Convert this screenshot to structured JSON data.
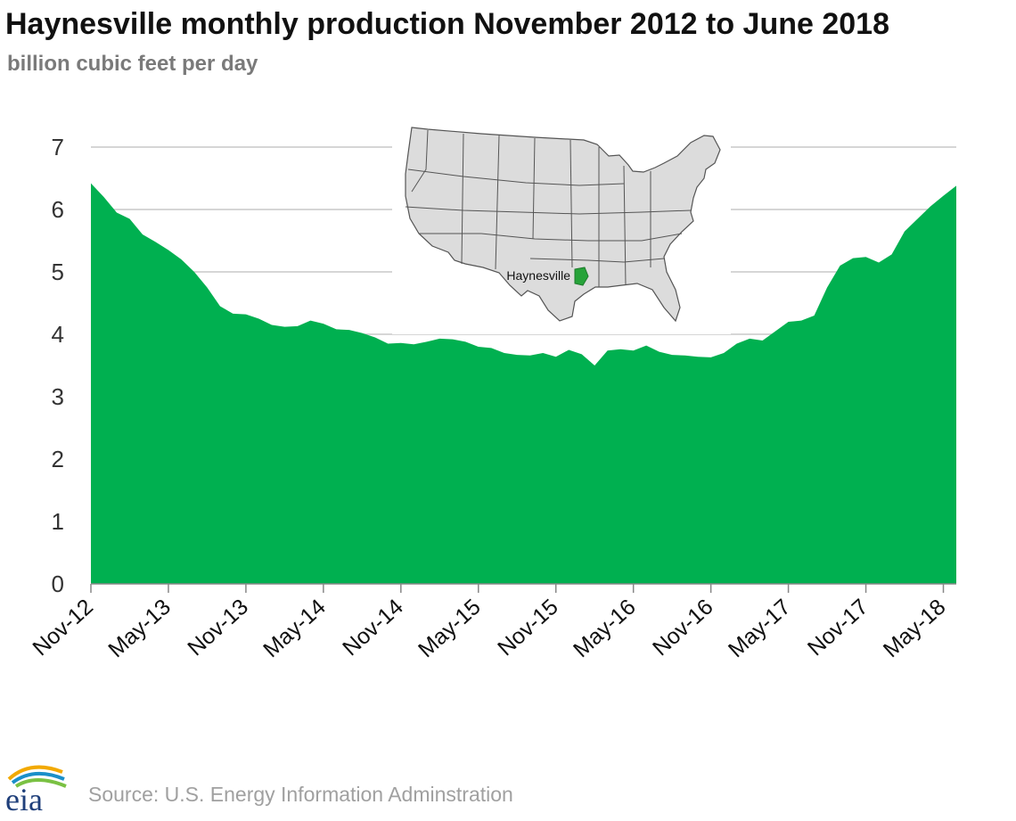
{
  "header": {
    "title": "Haynesville monthly production November 2012 to June 2018",
    "subtitle": "billion cubic feet per day"
  },
  "inset_map": {
    "label": "Haynesville",
    "highlight_color": "#27a33a"
  },
  "footer": {
    "logo_text": "eia",
    "source": "Source: U.S. Energy Information Adminstration"
  },
  "colors": {
    "area_fill": "#00b050",
    "grid": "#c8c8c8"
  },
  "chart_data": {
    "type": "area",
    "title": "Haynesville monthly production November 2012 to June 2018",
    "ylabel": "billion cubic feet per day",
    "xlabel": "",
    "ylim": [
      0,
      7
    ],
    "yticks": [
      0,
      1,
      2,
      3,
      4,
      5,
      6,
      7
    ],
    "xtick_labels": [
      "Nov-12",
      "May-13",
      "Nov-13",
      "May-14",
      "Nov-14",
      "May-15",
      "Nov-15",
      "May-16",
      "Nov-16",
      "May-17",
      "Nov-17",
      "May-18"
    ],
    "grid": true,
    "legend": "none",
    "series": [
      {
        "x": [
          "2012-11",
          "2012-12",
          "2013-01",
          "2013-02",
          "2013-03",
          "2013-04",
          "2013-05",
          "2013-06",
          "2013-07",
          "2013-08",
          "2013-09",
          "2013-10",
          "2013-11",
          "2013-12",
          "2014-01",
          "2014-02",
          "2014-03",
          "2014-04",
          "2014-05",
          "2014-06",
          "2014-07",
          "2014-08",
          "2014-09",
          "2014-10",
          "2014-11",
          "2014-12",
          "2015-01",
          "2015-02",
          "2015-03",
          "2015-04",
          "2015-05",
          "2015-06",
          "2015-07",
          "2015-08",
          "2015-09",
          "2015-10",
          "2015-11",
          "2015-12",
          "2016-01",
          "2016-02",
          "2016-03",
          "2016-04",
          "2016-05",
          "2016-06",
          "2016-07",
          "2016-08",
          "2016-09",
          "2016-10",
          "2016-11",
          "2016-12",
          "2017-01",
          "2017-02",
          "2017-03",
          "2017-04",
          "2017-05",
          "2017-06",
          "2017-07",
          "2017-08",
          "2017-09",
          "2017-10",
          "2017-11",
          "2017-12",
          "2018-01",
          "2018-02",
          "2018-03",
          "2018-04",
          "2018-05",
          "2018-06"
        ],
        "values": [
          6.42,
          6.2,
          5.95,
          5.85,
          5.6,
          5.48,
          5.35,
          5.2,
          5.0,
          4.75,
          4.45,
          4.33,
          4.32,
          4.25,
          4.15,
          4.12,
          4.13,
          4.22,
          4.17,
          4.08,
          4.07,
          4.02,
          3.95,
          3.85,
          3.86,
          3.84,
          3.88,
          3.93,
          3.92,
          3.88,
          3.8,
          3.78,
          3.7,
          3.67,
          3.66,
          3.7,
          3.64,
          3.75,
          3.68,
          3.5,
          3.74,
          3.76,
          3.74,
          3.82,
          3.72,
          3.67,
          3.66,
          3.64,
          3.63,
          3.7,
          3.85,
          3.93,
          3.9,
          4.05,
          4.2,
          4.22,
          4.3,
          4.75,
          5.1,
          5.22,
          5.24,
          5.15,
          5.28,
          5.65,
          5.85,
          6.05,
          6.22,
          6.38
        ]
      }
    ]
  }
}
